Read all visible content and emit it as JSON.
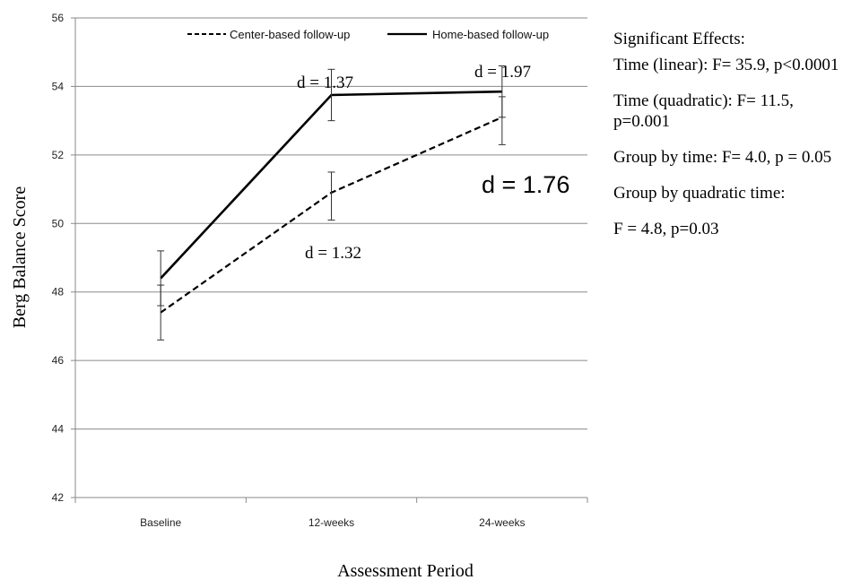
{
  "chart_data": {
    "type": "line",
    "categories": [
      "Baseline",
      "12-weeks",
      "24-weeks"
    ],
    "series": [
      {
        "name": "Center-based follow-up",
        "style": "dashed",
        "values": [
          47.4,
          50.9,
          53.1
        ],
        "error_low": [
          46.6,
          50.1,
          52.3
        ],
        "error_high": [
          48.2,
          51.5,
          53.7
        ]
      },
      {
        "name": "Home-based follow-up",
        "style": "solid",
        "values": [
          48.4,
          53.75,
          53.85
        ],
        "error_low": [
          47.6,
          53.0,
          53.1
        ],
        "error_high": [
          49.2,
          54.5,
          54.6
        ]
      }
    ],
    "xlabel": "Assessment Period",
    "ylabel": "Berg Balance Score",
    "ylim": [
      42,
      56
    ],
    "yticks": [
      42,
      44,
      46,
      48,
      50,
      52,
      54,
      56
    ],
    "grid": true,
    "legend_position": "top",
    "annotations": [
      "d = 1.37",
      "d = 1.97",
      "d = 1.76",
      "d = 1.32"
    ]
  },
  "effects": {
    "title": "Significant Effects:",
    "items": [
      "Time (linear): F= 35.9, p<0.0001",
      "Time (quadratic): F= 11.5, p=0.001",
      "Group by time: F= 4.0, p = 0.05",
      "Group by quadratic time:",
      "F = 4.8, p=0.03"
    ]
  }
}
